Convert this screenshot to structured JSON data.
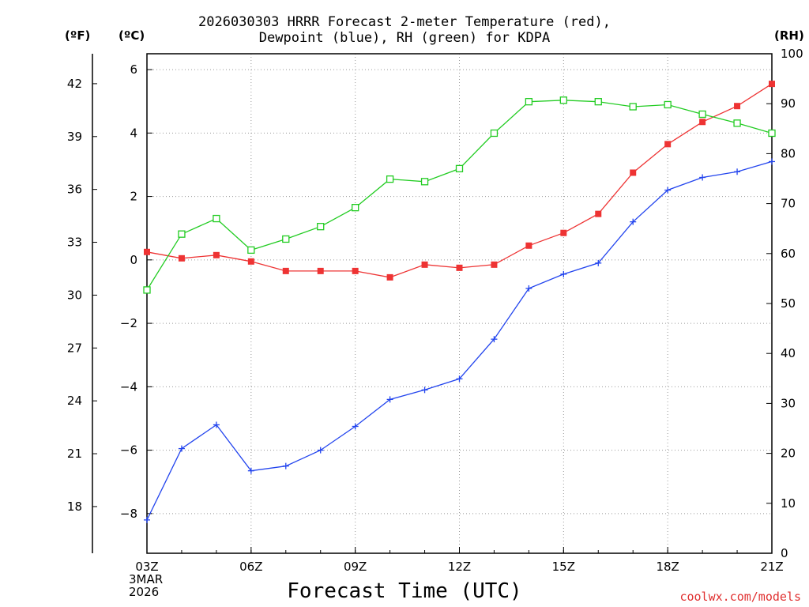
{
  "title_line1": "2026030303 HRRR Forecast 2-meter Temperature (red),",
  "title_line2": "Dewpoint (blue), RH (green) for KDPA",
  "unit_f": "(ºF)",
  "unit_c": "(ºC)",
  "unit_rh": "(RH)",
  "date_line1": "3MAR",
  "date_line2": "2026",
  "credit": "coolwx.com/models",
  "chart_data": {
    "type": "line",
    "title": "2026030303 HRRR Forecast 2-meter Temperature (red), Dewpoint (blue), RH (green) for KDPA",
    "xlabel": "Forecast Time (UTC)",
    "x_hours": [
      0,
      1,
      2,
      3,
      4,
      5,
      6,
      7,
      8,
      9,
      10,
      11,
      12,
      13,
      14,
      15,
      16,
      17,
      18
    ],
    "x_ticks": [
      {
        "hour": 0,
        "label": "03Z"
      },
      {
        "hour": 3,
        "label": "06Z"
      },
      {
        "hour": 6,
        "label": "09Z"
      },
      {
        "hour": 9,
        "label": "12Z"
      },
      {
        "hour": 12,
        "label": "15Z"
      },
      {
        "hour": 15,
        "label": "18Z"
      },
      {
        "hour": 18,
        "label": "21Z"
      }
    ],
    "celsius_axis": {
      "range": [
        -9.25,
        6.5
      ],
      "ticks": [
        -8,
        -6,
        -4,
        -2,
        0,
        2,
        4,
        6
      ],
      "tick_labels": [
        "−8",
        "−6",
        "−4",
        "−2",
        "0",
        "2",
        "4",
        "6"
      ]
    },
    "fahrenheit_axis": {
      "ticks": [
        18,
        21,
        24,
        27,
        30,
        33,
        36,
        39,
        42
      ],
      "tick_labels": [
        "18",
        "21",
        "24",
        "27",
        "30",
        "33",
        "36",
        "39",
        "42"
      ]
    },
    "rh_axis": {
      "range": [
        0,
        100
      ],
      "ticks": [
        0,
        10,
        20,
        30,
        40,
        50,
        60,
        70,
        80,
        90,
        100
      ],
      "tick_labels": [
        "0",
        "10",
        "20",
        "30",
        "40",
        "50",
        "60",
        "70",
        "80",
        "90",
        "100"
      ]
    },
    "grid": true,
    "series": [
      {
        "name": "Temperature",
        "units": "degC",
        "color": "#ee3333",
        "marker": "filled-square",
        "values": [
          0.25,
          0.05,
          0.15,
          -0.05,
          -0.35,
          -0.35,
          -0.35,
          -0.55,
          -0.15,
          -0.25,
          -0.15,
          0.45,
          0.85,
          1.45,
          2.75,
          3.65,
          4.35,
          4.85,
          5.55
        ]
      },
      {
        "name": "Dewpoint",
        "units": "degC",
        "color": "#2244ee",
        "marker": "plus",
        "values": [
          -8.2,
          -5.95,
          -5.2,
          -6.65,
          -6.5,
          -6.0,
          -5.25,
          -4.4,
          -4.1,
          -3.75,
          -2.5,
          -0.9,
          -0.45,
          -0.1,
          1.2,
          2.2,
          2.6,
          2.78,
          3.1
        ]
      },
      {
        "name": "RH",
        "units": "%",
        "color": "#22cc22",
        "marker": "open-square",
        "values": [
          52.7,
          63.9,
          67.0,
          60.7,
          62.9,
          65.4,
          69.2,
          74.9,
          74.4,
          77.0,
          84.1,
          90.4,
          90.7,
          90.4,
          89.4,
          89.8,
          87.9,
          86.1,
          84.1
        ]
      }
    ]
  }
}
